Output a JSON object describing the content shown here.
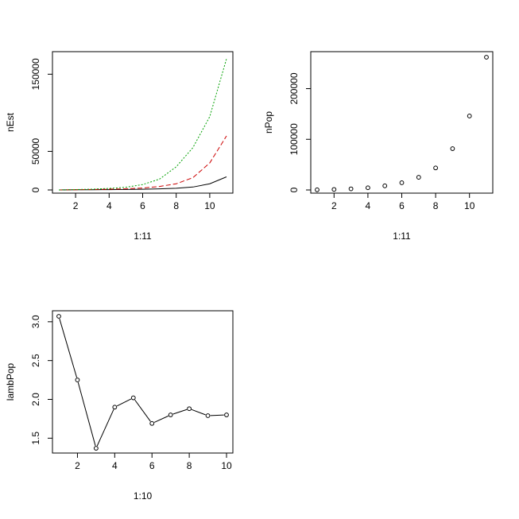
{
  "chart_data": [
    {
      "type": "line",
      "xlabel": "1:11",
      "ylabel": "nEst",
      "x": [
        1,
        2,
        3,
        4,
        5,
        6,
        7,
        8,
        9,
        10,
        11
      ],
      "xlim": [
        1,
        11
      ],
      "ylim": [
        0,
        172000
      ],
      "xticks": [
        2,
        4,
        6,
        8,
        10
      ],
      "yticks": [
        0,
        50000,
        150000
      ],
      "grid": false,
      "series": [
        {
          "color": "#000000",
          "dash": "solid",
          "values": [
            0,
            200,
            300,
            400,
            600,
            900,
            1400,
            2200,
            3800,
            8000,
            17000
          ]
        },
        {
          "color": "#cc0000",
          "dash": "dashed",
          "values": [
            0,
            300,
            600,
            1000,
            1500,
            2500,
            4500,
            8000,
            16000,
            35000,
            70000
          ]
        },
        {
          "color": "#00a000",
          "dash": "dotted",
          "values": [
            0,
            500,
            1000,
            2000,
            3500,
            7000,
            14000,
            30000,
            55000,
            95000,
            170000
          ]
        }
      ]
    },
    {
      "type": "scatter",
      "xlabel": "1:11",
      "ylabel": "nPop",
      "x": [
        1,
        2,
        3,
        4,
        5,
        6,
        7,
        8,
        9,
        10,
        11
      ],
      "xlim": [
        1,
        11
      ],
      "ylim": [
        0,
        262000
      ],
      "xticks": [
        2,
        4,
        6,
        8,
        10
      ],
      "yticks": [
        0,
        100000,
        200000
      ],
      "grid": false,
      "values": [
        300,
        1000,
        2200,
        4300,
        8100,
        14200,
        25000,
        43500,
        81500,
        146000,
        262000
      ]
    },
    {
      "type": "line",
      "markers": "open-circle",
      "xlabel": "1:10",
      "ylabel": "lambPop",
      "x": [
        1,
        2,
        3,
        4,
        5,
        6,
        7,
        8,
        9,
        10
      ],
      "xlim": [
        1,
        10
      ],
      "ylim": [
        1.36,
        3.07
      ],
      "xticks": [
        2,
        4,
        6,
        8,
        10
      ],
      "yticks": [
        1.5,
        2.0,
        2.5,
        3.0
      ],
      "grid": false,
      "values": [
        3.07,
        2.25,
        1.37,
        1.9,
        2.02,
        1.69,
        1.8,
        1.88,
        1.79,
        1.8
      ]
    }
  ]
}
